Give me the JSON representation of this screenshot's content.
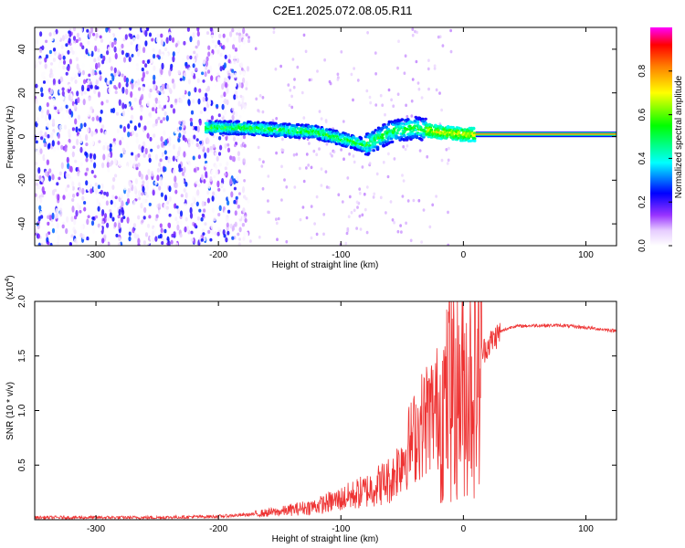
{
  "figure_title": "C2E1.2025.072.08.05.R11",
  "chart_data": [
    {
      "type": "heatmap",
      "name": "spectrogram",
      "xlabel": "Height of straight line (km)",
      "ylabel": "Frequency (Hz)",
      "xlim": [
        -350,
        125
      ],
      "ylim": [
        -50,
        50
      ],
      "xticks": [
        -300,
        -200,
        -100,
        0,
        100
      ],
      "xtick_labels": [
        "-300",
        "-200",
        "-100",
        "0",
        "100"
      ],
      "yticks": [
        -40,
        -20,
        0,
        20,
        40
      ],
      "ytick_labels": [
        "-40",
        "-20",
        "0",
        "20",
        "40"
      ],
      "colorbar": {
        "label": "Normalized spectral amplitude",
        "range": [
          0,
          1
        ],
        "ticks": [
          0.0,
          0.2,
          0.4,
          0.6,
          0.8
        ],
        "tick_labels": [
          "0.0",
          "0.2",
          "0.4",
          "0.6",
          "0.8"
        ],
        "colormap": [
          "#ffffff",
          "#cc99ff",
          "#7f00ff",
          "#0000ff",
          "#00ffff",
          "#00ff00",
          "#ffff00",
          "#ff7f00",
          "#ff0000",
          "#ff00ff"
        ]
      },
      "signal_track": [
        {
          "x": -210,
          "freq": 4
        },
        {
          "x": -180,
          "freq": 4
        },
        {
          "x": -150,
          "freq": 3
        },
        {
          "x": -120,
          "freq": 2
        },
        {
          "x": -100,
          "freq": -1
        },
        {
          "x": -80,
          "freq": -4
        },
        {
          "x": -60,
          "freq": 2
        },
        {
          "x": -40,
          "freq": 4
        },
        {
          "x": -20,
          "freq": 2
        },
        {
          "x": 0,
          "freq": 1
        },
        {
          "x": 10,
          "freq": 1
        },
        {
          "x": 125,
          "freq": 1
        }
      ],
      "constant_band": {
        "x_start": 10,
        "x_end": 125,
        "freq": 1,
        "amplitude": 0.95
      },
      "noise_region": {
        "x_start": -350,
        "x_end": -185,
        "amplitude": 0.3
      }
    },
    {
      "type": "line",
      "name": "snr",
      "xlabel": "Height of straight line (km)",
      "ylabel": "SNR (10 * v/v)",
      "exponent_label": "(x10",
      "exponent_power": "4",
      "exponent_close": ")",
      "xlim": [
        -350,
        125
      ],
      "ylim": [
        0,
        2.0
      ],
      "xticks": [
        -300,
        -200,
        -100,
        0,
        100
      ],
      "xtick_labels": [
        "-300",
        "-200",
        "-100",
        "0",
        "100"
      ],
      "yticks": [
        0.5,
        1.0,
        1.5,
        2.0
      ],
      "ytick_labels": [
        "0.5",
        "1.0",
        "1.5",
        "2.0"
      ],
      "color": "#ee3333",
      "envelope": [
        {
          "x": -350,
          "y": 0.02
        },
        {
          "x": -250,
          "y": 0.02
        },
        {
          "x": -200,
          "y": 0.03
        },
        {
          "x": -170,
          "y": 0.05
        },
        {
          "x": -150,
          "y": 0.07
        },
        {
          "x": -120,
          "y": 0.12
        },
        {
          "x": -100,
          "y": 0.18
        },
        {
          "x": -80,
          "y": 0.25
        },
        {
          "x": -60,
          "y": 0.35
        },
        {
          "x": -50,
          "y": 0.6
        },
        {
          "x": -40,
          "y": 0.8
        },
        {
          "x": -30,
          "y": 1.0
        },
        {
          "x": -20,
          "y": 1.1
        },
        {
          "x": -10,
          "y": 1.2
        },
        {
          "x": 0,
          "y": 1.3
        },
        {
          "x": 10,
          "y": 1.45
        },
        {
          "x": 20,
          "y": 1.6
        },
        {
          "x": 30,
          "y": 1.72
        },
        {
          "x": 40,
          "y": 1.77
        },
        {
          "x": 60,
          "y": 1.78
        },
        {
          "x": 80,
          "y": 1.78
        },
        {
          "x": 100,
          "y": 1.76
        },
        {
          "x": 125,
          "y": 1.73
        }
      ]
    }
  ]
}
